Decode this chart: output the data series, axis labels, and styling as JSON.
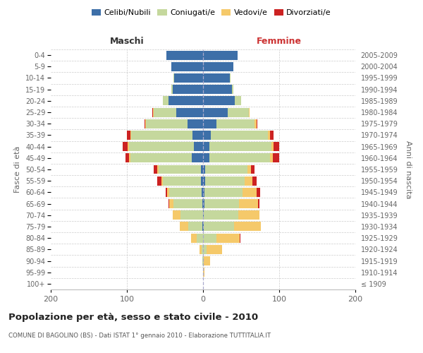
{
  "age_groups": [
    "100+",
    "95-99",
    "90-94",
    "85-89",
    "80-84",
    "75-79",
    "70-74",
    "65-69",
    "60-64",
    "55-59",
    "50-54",
    "45-49",
    "40-44",
    "35-39",
    "30-34",
    "25-29",
    "20-24",
    "15-19",
    "10-14",
    "5-9",
    "0-4"
  ],
  "birth_years": [
    "≤ 1909",
    "1910-1914",
    "1915-1919",
    "1920-1924",
    "1925-1929",
    "1930-1934",
    "1935-1939",
    "1940-1944",
    "1945-1949",
    "1950-1954",
    "1955-1959",
    "1960-1964",
    "1965-1969",
    "1970-1974",
    "1975-1979",
    "1980-1984",
    "1985-1989",
    "1990-1994",
    "1995-1999",
    "2000-2004",
    "2005-2009"
  ],
  "male": {
    "celibi": [
      0,
      0,
      0,
      0,
      0,
      1,
      0,
      1,
      2,
      3,
      3,
      15,
      12,
      14,
      20,
      35,
      45,
      40,
      38,
      42,
      48
    ],
    "coniugati": [
      0,
      0,
      1,
      2,
      8,
      18,
      30,
      38,
      42,
      50,
      55,
      80,
      85,
      80,
      55,
      30,
      8,
      2,
      1,
      0,
      0
    ],
    "vedovi": [
      0,
      0,
      0,
      3,
      8,
      12,
      10,
      5,
      3,
      2,
      2,
      2,
      2,
      1,
      1,
      1,
      0,
      0,
      0,
      0,
      0
    ],
    "divorziati": [
      0,
      0,
      0,
      0,
      0,
      0,
      0,
      1,
      2,
      5,
      5,
      5,
      7,
      5,
      1,
      1,
      0,
      0,
      0,
      0,
      0
    ]
  },
  "female": {
    "nubili": [
      0,
      0,
      0,
      0,
      0,
      1,
      1,
      2,
      2,
      3,
      3,
      8,
      8,
      10,
      18,
      32,
      42,
      38,
      35,
      40,
      45
    ],
    "coniugate": [
      0,
      0,
      1,
      5,
      18,
      40,
      45,
      45,
      50,
      52,
      55,
      80,
      82,
      75,
      50,
      28,
      8,
      2,
      1,
      0,
      0
    ],
    "vedove": [
      0,
      2,
      8,
      20,
      30,
      35,
      28,
      25,
      18,
      10,
      5,
      4,
      3,
      3,
      2,
      1,
      0,
      0,
      0,
      0,
      0
    ],
    "divorziate": [
      0,
      0,
      0,
      0,
      1,
      0,
      0,
      2,
      5,
      5,
      5,
      8,
      7,
      5,
      1,
      0,
      0,
      0,
      0,
      0,
      0
    ]
  },
  "colors": {
    "celibi": "#3d6fa8",
    "coniugati": "#c5d89d",
    "vedovi": "#f5c96a",
    "divorziati": "#cc2222"
  },
  "title": "Popolazione per età, sesso e stato civile - 2010",
  "subtitle": "COMUNE DI BAGOLINO (BS) - Dati ISTAT 1° gennaio 2010 - Elaborazione TUTTITALIA.IT",
  "ylabel_left": "Fasce di età",
  "ylabel_right": "Anni di nascita",
  "header_left": "Maschi",
  "header_right": "Femmine",
  "legend_labels": [
    "Celibi/Nubili",
    "Coniugati/e",
    "Vedovi/e",
    "Divorziati/e"
  ],
  "xlim": 200,
  "background_color": "#ffffff",
  "grid_color": "#cccccc",
  "fig_width": 6.0,
  "fig_height": 5.0,
  "dpi": 100
}
